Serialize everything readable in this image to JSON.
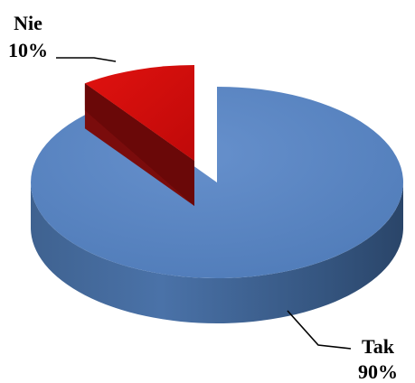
{
  "chart_data": {
    "type": "pie",
    "style": "3d-exploded",
    "title": "",
    "slices": [
      {
        "category": "Tak",
        "value": 90,
        "percent_label": "90%",
        "color": "#5b86c2"
      },
      {
        "category": "Nie",
        "value": 10,
        "percent_label": "10%",
        "color": "#d10a0a"
      }
    ],
    "legend": "none"
  }
}
